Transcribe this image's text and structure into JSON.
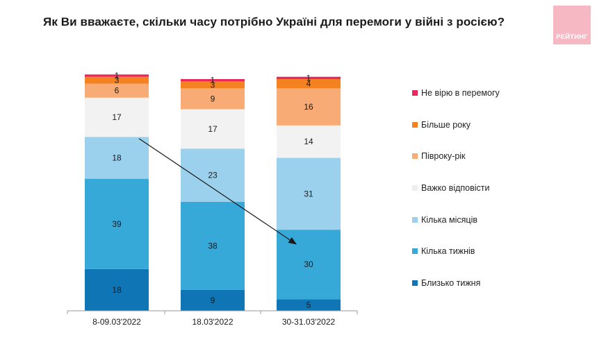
{
  "logo": {
    "text": "РЕЙТИНГ",
    "color": "#f6b8c3"
  },
  "chart_data": {
    "type": "bar",
    "stacked": true,
    "title": "Як Ви вважаєте, скільки часу потрібно Україні для перемоги у війні з росією?",
    "categories": [
      "8-09.03'2022",
      "18.03'2022",
      "30-31.03'2022"
    ],
    "series": [
      {
        "name": "Близько тижня",
        "color": "#0f75b4",
        "values": [
          18,
          9,
          5
        ]
      },
      {
        "name": "Кілька тижнів",
        "color": "#36a9d8",
        "values": [
          39,
          38,
          30
        ]
      },
      {
        "name": "Кілька місяців",
        "color": "#9bd1ec",
        "values": [
          18,
          23,
          31
        ]
      },
      {
        "name": "Важко відповісти",
        "color": "#f2f2f2",
        "values": [
          17,
          17,
          14
        ]
      },
      {
        "name": "Півроку-рік",
        "color": "#f8ab74",
        "values": [
          6,
          9,
          16
        ]
      },
      {
        "name": "Більше року",
        "color": "#f58220",
        "values": [
          3,
          3,
          4
        ]
      },
      {
        "name": "Не вірю в перемогу",
        "color": "#e8275a",
        "values": [
          1,
          1,
          1
        ]
      }
    ],
    "ylim": [
      0,
      103
    ],
    "legend_position": "right",
    "gridlines": false,
    "annotation": {
      "type": "arrow",
      "from": {
        "category": 0,
        "value": 39
      },
      "to": {
        "category": 2,
        "value": 22.5
      }
    }
  }
}
